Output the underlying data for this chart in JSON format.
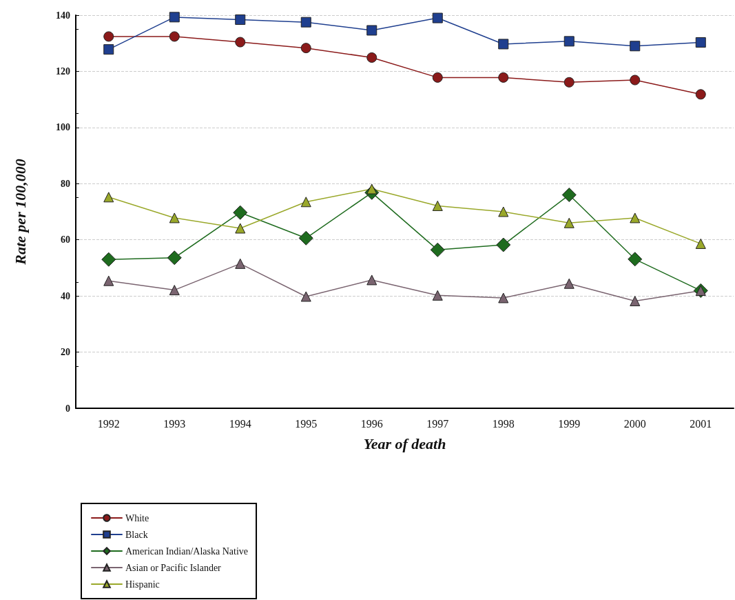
{
  "chart_data": {
    "type": "line",
    "xlabel": "Year of death",
    "ylabel": "Rate per 100,000",
    "categories": [
      "1992",
      "1993",
      "1994",
      "1995",
      "1996",
      "1997",
      "1998",
      "1999",
      "2000",
      "2001"
    ],
    "series": [
      {
        "name": "White",
        "color": "#8b1a1a",
        "marker": "circle",
        "values": [
          132.4,
          132.4,
          130.4,
          128.3,
          124.9,
          117.8,
          117.8,
          116.1,
          116.9,
          111.8
        ]
      },
      {
        "name": "Black",
        "color": "#1f3f8f",
        "marker": "square",
        "values": [
          127.8,
          139.3,
          138.4,
          137.5,
          134.6,
          139.0,
          129.7,
          130.7,
          129.0,
          130.3
        ]
      },
      {
        "name": "American Indian/Alaska Native",
        "color": "#1e6b1e",
        "marker": "diamond",
        "values": [
          53.0,
          53.6,
          69.7,
          60.6,
          76.8,
          56.4,
          58.2,
          76.0,
          53.1,
          41.9
        ]
      },
      {
        "name": "Asian or Pacific Islander",
        "color": "#7a6470",
        "marker": "triangle",
        "values": [
          45.4,
          42.1,
          51.5,
          39.8,
          45.7,
          40.2,
          39.3,
          44.4,
          38.2,
          41.9
        ]
      },
      {
        "name": "Hispanic",
        "color": "#9aa82a",
        "marker": "triangle",
        "values": [
          75.2,
          67.8,
          64.1,
          73.5,
          78.1,
          72.1,
          70.0,
          66.0,
          67.8,
          58.6
        ]
      }
    ],
    "ylim": [
      0,
      140
    ],
    "yticks": [
      0,
      20,
      40,
      60,
      80,
      100,
      120,
      140
    ],
    "grid": "y",
    "legend": "bottom left"
  }
}
